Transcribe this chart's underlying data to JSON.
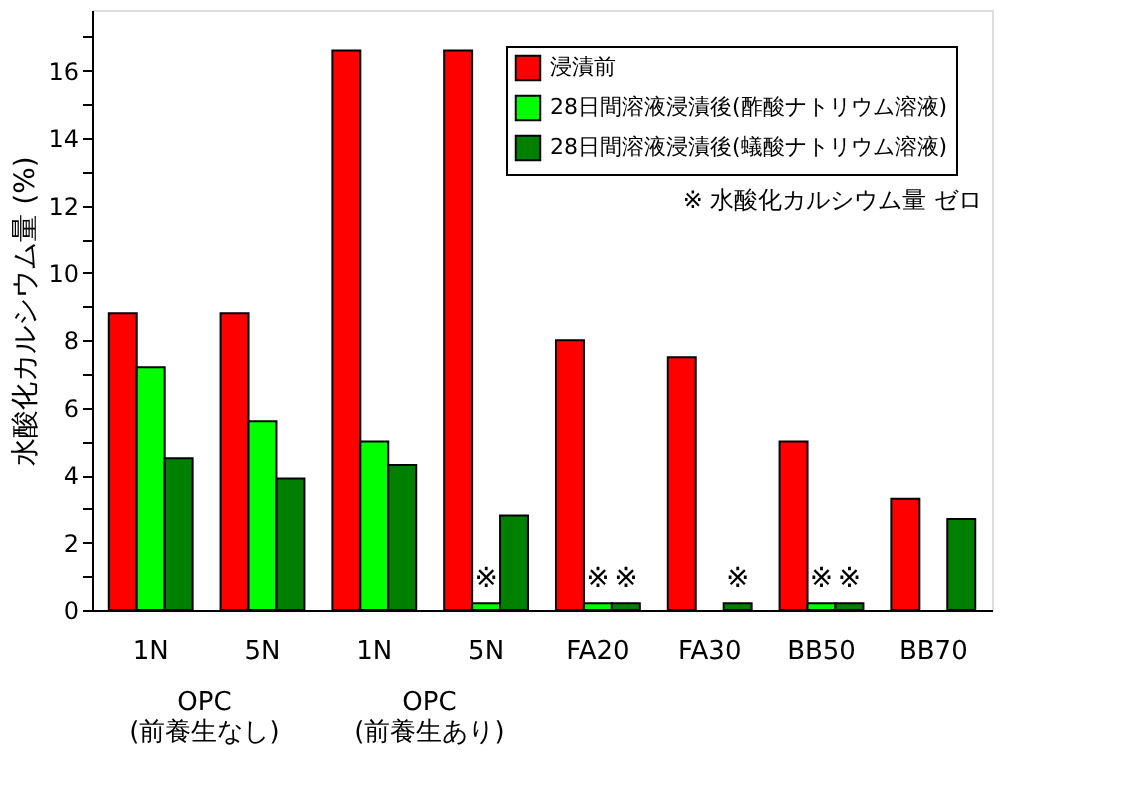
{
  "chart_data": {
    "type": "bar",
    "ylabel": "水酸化カルシウム量 (%)",
    "categories": [
      "1N",
      "5N",
      "1N",
      "5N",
      "FA20",
      "FA30",
      "BB50",
      "BB70"
    ],
    "series": [
      {
        "name": "浸漬前",
        "color": "#ff0000",
        "values": [
          8.8,
          8.8,
          16.6,
          16.6,
          8.0,
          7.5,
          5.0,
          3.3
        ]
      },
      {
        "name": "28日間溶液浸漬後(酢酸ナトリウム溶液)",
        "color": "#00ff00",
        "values": [
          7.2,
          5.6,
          5.0,
          0.2,
          0.2,
          null,
          0.2,
          null
        ],
        "value_labels": [
          null,
          null,
          null,
          "※",
          "※",
          null,
          "※",
          null
        ]
      },
      {
        "name": "28日間溶液浸漬後(蟻酸ナトリウム溶液)",
        "color": "#008000",
        "values": [
          4.5,
          3.9,
          4.3,
          2.8,
          0.2,
          0.2,
          0.2,
          2.7
        ],
        "value_labels": [
          null,
          null,
          null,
          null,
          "※",
          "※",
          "※",
          null
        ]
      }
    ],
    "ylim": [
      0,
      17.8
    ],
    "yticks": [
      0,
      {
        "value": 1,
        "label": null
      },
      2,
      {
        "value": 3,
        "label": null
      },
      4,
      {
        "value": 5,
        "label": null
      },
      6,
      {
        "value": 7,
        "label": null
      },
      8,
      {
        "value": 9,
        "label": null
      },
      10,
      {
        "value": 11,
        "label": null
      },
      12,
      {
        "value": 13,
        "label": null
      },
      14,
      {
        "value": 15,
        "label": null
      },
      16,
      {
        "value": 17,
        "label": null
      }
    ],
    "grid": false,
    "legend": "top right",
    "annotations": [
      "※ 水酸化カルシウム量 ゼロ",
      "OPC\n(前養生なし)",
      "OPC\n(前養生あり)"
    ]
  }
}
